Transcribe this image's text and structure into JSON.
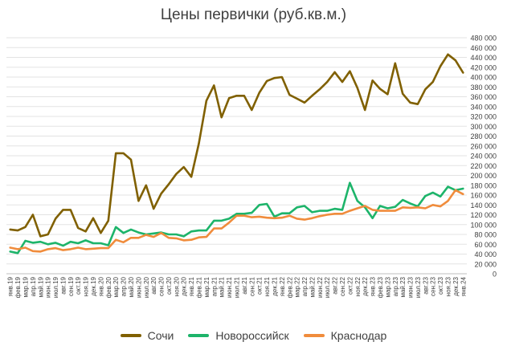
{
  "chart_data": {
    "type": "line",
    "title": "Цены первички (руб.кв.м.)",
    "categories": [
      "янв.19",
      "фев.19",
      "мар.19",
      "апр.19",
      "май.19",
      "июн.19",
      "июл.19",
      "авг.19",
      "сен.19",
      "окт.19",
      "ноя.19",
      "дек.19",
      "янв.20",
      "фев.20",
      "мар.20",
      "апр.20",
      "май.20",
      "июн.20",
      "июл.20",
      "авг.20",
      "сен.20",
      "окт.20",
      "ноя.20",
      "дек.20",
      "янв.21",
      "фев.21",
      "мар.21",
      "апр.21",
      "май.21",
      "июн.21",
      "июл.21",
      "авг.21",
      "сен.21",
      "окт.21",
      "ноя.21",
      "дек.21",
      "янв.22",
      "фев.22",
      "мар.22",
      "апр.22",
      "май.22",
      "июн.22",
      "июл.22",
      "авг.22",
      "сен.22",
      "окт.22",
      "ноя.22",
      "дек.22",
      "янв.23",
      "фев.23",
      "мар.23",
      "апр.23",
      "май.23",
      "июн.23",
      "июл.23",
      "авг.23",
      "сен.23",
      "окт.23",
      "ноя.23",
      "дек.23",
      "янв.24"
    ],
    "series": [
      {
        "name": "Сочи",
        "color": "#806000",
        "values": [
          90000,
          88000,
          95000,
          120000,
          76000,
          80000,
          112000,
          130000,
          130000,
          93000,
          86000,
          113000,
          83000,
          108000,
          245000,
          245000,
          232000,
          148000,
          180000,
          132000,
          163000,
          182000,
          203000,
          217000,
          197000,
          265000,
          352000,
          383000,
          318000,
          357000,
          362000,
          362000,
          333000,
          368000,
          392000,
          398000,
          400000,
          364000,
          356000,
          348000,
          362000,
          375000,
          390000,
          410000,
          390000,
          412000,
          378000,
          333000,
          393000,
          376000,
          365000,
          428000,
          366000,
          348000,
          345000,
          375000,
          390000,
          422000,
          446000,
          434000,
          409000
        ]
      },
      {
        "name": "Новороссийск",
        "color": "#1db46a",
        "values": [
          45000,
          42000,
          67000,
          63000,
          65000,
          60000,
          63000,
          57000,
          65000,
          62000,
          68000,
          62000,
          62000,
          58000,
          95000,
          83000,
          90000,
          84000,
          80000,
          82000,
          84000,
          80000,
          80000,
          76000,
          86000,
          88000,
          88000,
          108000,
          108000,
          112000,
          122000,
          122000,
          124000,
          140000,
          142000,
          116000,
          123000,
          123000,
          135000,
          138000,
          125000,
          128000,
          128000,
          132000,
          130000,
          185000,
          148000,
          135000,
          113000,
          138000,
          133000,
          136000,
          150000,
          143000,
          137000,
          158000,
          165000,
          157000,
          177000,
          170000,
          173000
        ]
      },
      {
        "name": "Краснодар",
        "color": "#f08c3c",
        "values": [
          53000,
          50000,
          53000,
          46000,
          45000,
          50000,
          52000,
          48000,
          50000,
          53000,
          50000,
          51000,
          52000,
          52000,
          69000,
          64000,
          73000,
          73000,
          79000,
          75000,
          83000,
          73000,
          72000,
          68000,
          69000,
          74000,
          75000,
          92000,
          92000,
          104000,
          118000,
          118000,
          115000,
          116000,
          114000,
          113000,
          114000,
          118000,
          112000,
          110000,
          113000,
          117000,
          120000,
          122000,
          122000,
          128000,
          133000,
          138000,
          130000,
          128000,
          128000,
          128000,
          135000,
          134000,
          135000,
          133000,
          140000,
          137000,
          148000,
          170000,
          162000
        ]
      }
    ],
    "y_ticks": [
      "0",
      "20 000",
      "40 000",
      "60 000",
      "80 000",
      "100 000",
      "120 000",
      "140 000",
      "160 000",
      "180 000",
      "200 000",
      "220 000",
      "240 000",
      "260 000",
      "280 000",
      "300 000",
      "320 000",
      "340 000",
      "360 000",
      "380 000",
      "400 000",
      "420 000",
      "440 000",
      "460 000",
      "480 000"
    ],
    "ylim": [
      0,
      480000
    ],
    "grid": true,
    "legend_position": "bottom"
  }
}
